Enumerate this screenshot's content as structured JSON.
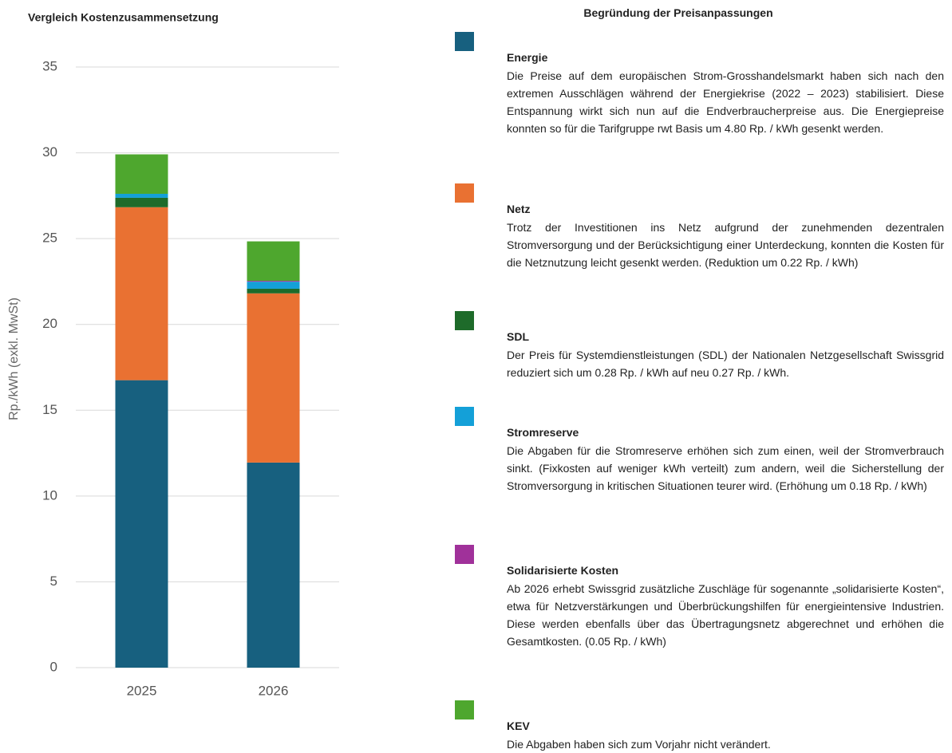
{
  "chart_data": {
    "type": "stacked_bar",
    "title": "Vergleich Kostenzusammensetzung",
    "ylabel": "Rp./kWh (exkl. MwSt)",
    "categories": [
      "2025",
      "2026"
    ],
    "series": [
      {
        "name": "Energie",
        "color": "#17607f",
        "values": [
          16.75,
          11.95
        ]
      },
      {
        "name": "Netz",
        "color": "#e97132",
        "values": [
          10.08,
          9.86
        ]
      },
      {
        "name": "SDL",
        "color": "#1e6b2a",
        "values": [
          0.55,
          0.27
        ]
      },
      {
        "name": "Stromreserve",
        "color": "#14a0d8",
        "values": [
          0.23,
          0.41
        ]
      },
      {
        "name": "Solidarisierte Kosten",
        "color": "#a0319a",
        "values": [
          0,
          0.05
        ]
      },
      {
        "name": "KEV",
        "color": "#4ea72e",
        "values": [
          2.3,
          2.3
        ]
      }
    ],
    "ylim": [
      0,
      35
    ],
    "yticks": [
      0,
      5,
      10,
      15,
      20,
      25,
      30,
      35
    ],
    "grid": true
  },
  "panel": {
    "title": "Begründung der Preisanpassungen",
    "descriptions": [
      "Die Preise auf dem europäischen Strom-Grosshandelsmarkt haben sich nach den extremen Ausschlägen während der Energiekrise (2022 – 2023) stabilisiert. Diese Entspannung wirkt sich nun auf die Endverbraucherpreise aus. Die Energiepreise konnten so für die Tarifgruppe rwt Basis um 4.80 Rp. / kWh gesenkt werden.",
      "Trotz der Investitionen ins Netz aufgrund der zunehmenden dezentralen Stromversorgung und der Berücksichtigung einer Unterdeckung, konnten die Kosten für die Netznutzung leicht gesenkt werden. (Reduktion um 0.22 Rp. / kWh)",
      "Der Preis für Systemdienstleistungen (SDL) der Nationalen Netzgesellschaft Swissgrid reduziert sich um 0.28 Rp. / kWh auf neu 0.27 Rp. / kWh.",
      "Die Abgaben für die Stromreserve erhöhen sich zum einen, weil der Stromverbrauch sinkt. (Fixkosten auf weniger kWh verteilt) zum andern, weil die Sicherstellung der Stromversorgung in kritischen Situationen teurer wird. (Erhöhung um 0.18 Rp. / kWh)",
      "Ab 2026 erhebt Swissgrid zusätzliche Zuschläge für sogenannte „solidarisierte Kosten“, etwa für Netzverstärkungen und Überbrückungshilfen für energieintensive Industrien. Diese werden ebenfalls über das Übertragungsnetz abgerechnet und erhöhen die Gesamtkosten. (0.05 Rp. / kWh)",
      "Die Abgaben haben sich zum Vorjahr nicht verändert."
    ]
  }
}
